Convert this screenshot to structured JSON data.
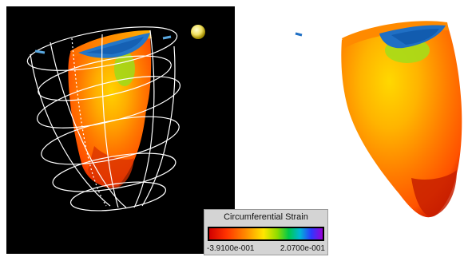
{
  "legend": {
    "title": "Circumferential Strain",
    "min_label": "-3.9100e-001",
    "max_label": "2.0700e-001",
    "colors": [
      "#d10000",
      "#ff3300",
      "#ff8a00",
      "#ffe600",
      "#8fdc00",
      "#00c84a",
      "#00b6d6",
      "#2d38ff",
      "#9a00d6"
    ]
  }
}
